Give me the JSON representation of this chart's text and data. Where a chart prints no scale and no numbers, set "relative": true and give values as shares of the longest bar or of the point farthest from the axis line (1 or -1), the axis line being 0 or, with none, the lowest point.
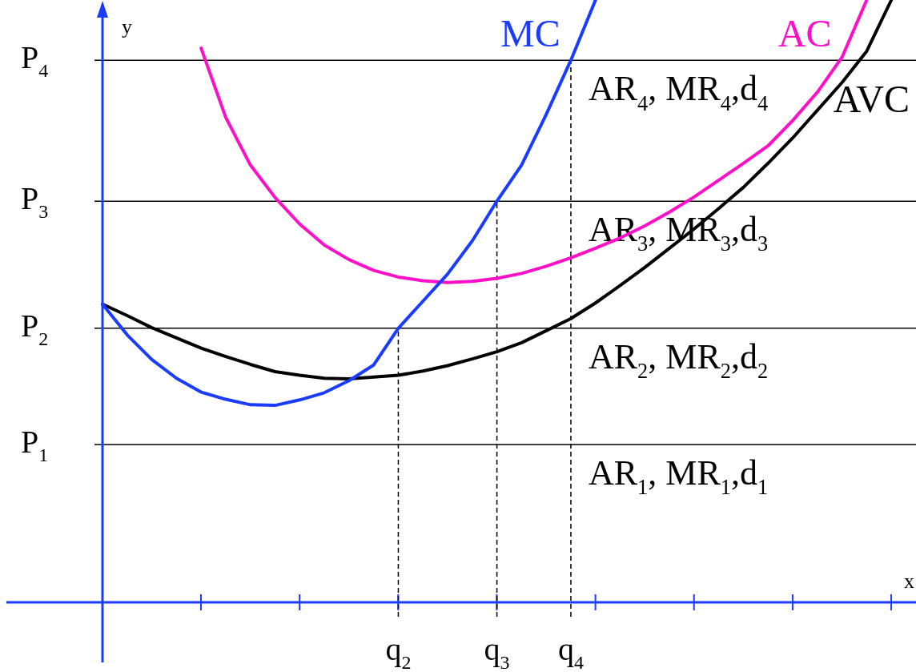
{
  "chart_data": {
    "type": "line",
    "relative": true,
    "xlabel": "x",
    "ylabel": "y",
    "categories": [
      null,
      null,
      null,
      null,
      null,
      null,
      null,
      null,
      null,
      null,
      null,
      null,
      "q$_{2}$",
      null,
      null,
      null,
      "q$_{3}$",
      null,
      null,
      "q$_{4}$",
      null,
      null,
      null,
      null,
      null,
      null,
      null,
      null,
      null,
      null,
      null,
      null,
      null,
      null
    ],
    "legend": false,
    "marker": "none",
    "line_style": "solid",
    "series": [
      {
        "name": "MC",
        "color": "#1a3cff",
        "values": [
          0.495,
          0.444,
          0.403,
          0.372,
          0.349,
          0.337,
          0.328,
          0.327,
          0.336,
          0.348,
          0.368,
          0.394,
          0.455,
          0.5,
          0.545,
          0.6,
          0.666,
          0.726,
          0.81,
          0.9,
          1,
          null,
          null,
          null,
          null,
          null,
          null,
          null,
          null,
          null,
          null,
          null,
          null,
          null
        ]
      },
      {
        "name": "AC",
        "color": "#ff10c8",
        "values": [
          null,
          null,
          null,
          null,
          0.92,
          0.805,
          0.726,
          0.672,
          0.628,
          0.593,
          0.569,
          0.551,
          0.54,
          0.534,
          0.531,
          0.533,
          0.538,
          0.546,
          0.558,
          0.572,
          0.588,
          0.605,
          0.625,
          0.648,
          0.673,
          0.701,
          0.729,
          0.758,
          0.8,
          0.847,
          0.905,
          1,
          null,
          null
        ]
      },
      {
        "name": "AVC",
        "color": "#000000",
        "values": [
          0.495,
          0.476,
          0.456,
          0.439,
          0.422,
          0.408,
          0.395,
          0.383,
          0.377,
          0.372,
          0.371,
          0.374,
          0.377,
          0.384,
          0.393,
          0.404,
          0.416,
          0.431,
          0.451,
          0.471,
          0.497,
          0.526,
          0.556,
          0.588,
          0.62,
          0.654,
          0.689,
          0.729,
          0.771,
          0.817,
          0.863,
          0.915,
          1,
          null
        ]
      }
    ],
    "ref_lines": [
      {
        "axis": "y",
        "value": 0.9,
        "label": "P$_{4}$",
        "color": "#000000",
        "line_style": "solid"
      },
      {
        "axis": "y",
        "value": 0.666,
        "label": "P$_{3}$",
        "color": "#000000",
        "line_style": "solid"
      },
      {
        "axis": "y",
        "value": 0.455,
        "label": "P$_{2}$",
        "color": "#000000",
        "line_style": "solid"
      },
      {
        "axis": "y",
        "value": 0.262,
        "label": "P$_{1}$",
        "color": "#000000",
        "line_style": "solid"
      },
      {
        "axis": "x",
        "value": "q$_{2}$",
        "color": "#000000",
        "line_style": "dashed"
      },
      {
        "axis": "x",
        "value": "q$_{3}$",
        "color": "#000000",
        "line_style": "dashed"
      },
      {
        "axis": "x",
        "value": "q$_{4}$",
        "color": "#000000",
        "line_style": "dashed"
      }
    ],
    "annotations": [
      "AR$_{4}$, MR$_{4}$,d$_{4}$",
      "AR$_{3}$, MR$_{3}$,d$_{3}$",
      "AR$_{2}$, MR$_{2}$,d$_{2}$",
      "AR$_{1}$, MR$_{1}$,d$_{1}$"
    ]
  }
}
